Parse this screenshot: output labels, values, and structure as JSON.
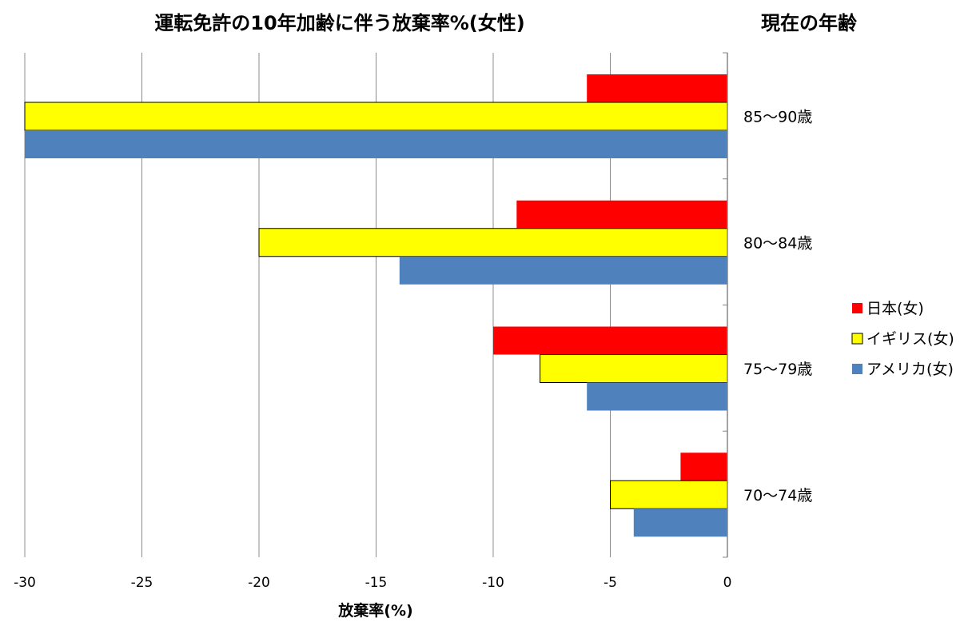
{
  "chart_data": {
    "type": "bar",
    "orientation": "horizontal",
    "title": "運転免許の10年加齢に伴う放棄率%(女性)",
    "ylabel": "現在の年齢",
    "xlabel": "放棄率(%)",
    "xlim": [
      -30,
      0
    ],
    "xticks": [
      "-30",
      "-25",
      "-20",
      "-15",
      "-10",
      "-5",
      "0"
    ],
    "xtick_values": [
      -30,
      -25,
      -20,
      -15,
      -10,
      -5,
      0
    ],
    "grid": true,
    "legend_position": "right",
    "categories": [
      "85〜90歳",
      "80〜84歳",
      "75〜79歳",
      "70〜74歳"
    ],
    "series": [
      {
        "name": "日本(女)",
        "color": "#ff0000",
        "values": [
          -6,
          -9,
          -10,
          -2
        ]
      },
      {
        "name": "イギリス(女)",
        "color": "#ffff00",
        "values": [
          -30,
          -20,
          -8,
          -5
        ]
      },
      {
        "name": "アメリカ(女)",
        "color": "#4f81bd",
        "values": [
          -30,
          -14,
          -6,
          -4
        ]
      }
    ]
  }
}
